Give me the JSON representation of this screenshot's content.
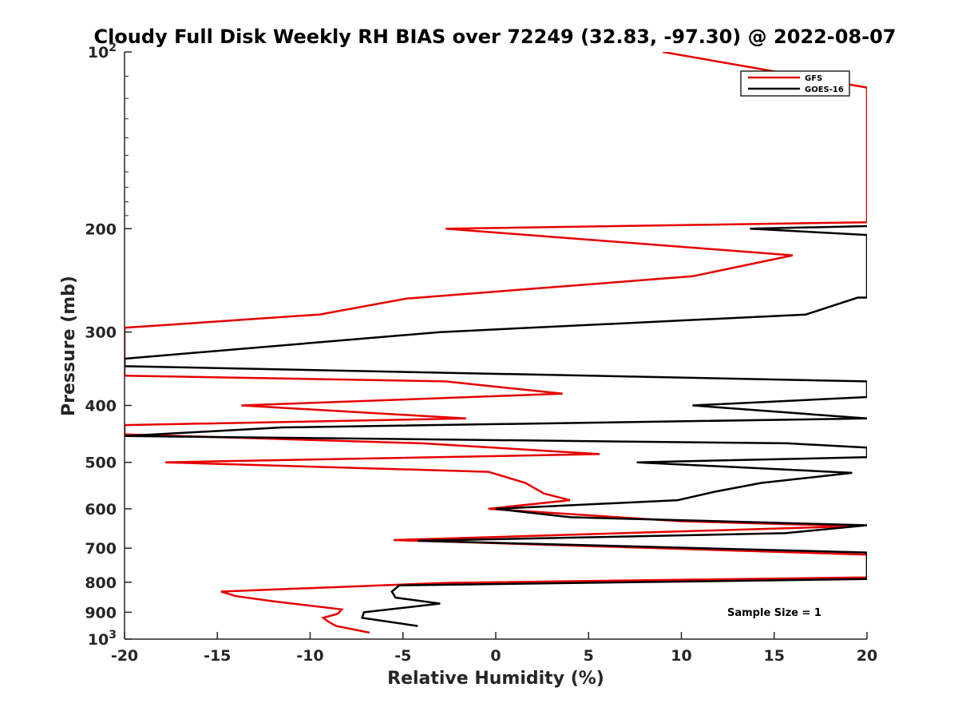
{
  "chart_data": {
    "type": "line",
    "title": "Cloudy Full Disk Weekly RH BIAS over 72249 (32.83, -97.30) @ 2022-08-07",
    "xlabel": "Relative Humidity (%)",
    "ylabel": "Pressure (mb)",
    "xlim": [
      -20,
      20
    ],
    "ylim": [
      1000,
      100
    ],
    "yscale": "log",
    "x_ticks": [
      "-20",
      "-15",
      "-10",
      "-5",
      "0",
      "5",
      "10",
      "15",
      "20"
    ],
    "y_ticks": [
      {
        "value": 100,
        "base": "10",
        "exp": "2"
      },
      {
        "value": 200,
        "label": "200"
      },
      {
        "value": 300,
        "label": "300"
      },
      {
        "value": 400,
        "label": "400"
      },
      {
        "value": 500,
        "label": "500"
      },
      {
        "value": 600,
        "label": "600"
      },
      {
        "value": 700,
        "label": "700"
      },
      {
        "value": 800,
        "label": "800"
      },
      {
        "value": 900,
        "label": "900"
      },
      {
        "value": 1000,
        "base": "10",
        "exp": "3"
      }
    ],
    "legend": {
      "position": "top-right",
      "entries": [
        "GFS",
        "GOES-16"
      ]
    },
    "annotation": "Sample Size = 1",
    "series": [
      {
        "name": "GFS",
        "color": "#e60000",
        "points": [
          [
            9,
            100
          ],
          [
            20,
            115
          ],
          [
            20,
            195
          ],
          [
            -2.7,
            200
          ],
          [
            16,
            222
          ],
          [
            10.6,
            241
          ],
          [
            -4.8,
            263
          ],
          [
            -9.5,
            280
          ],
          [
            -20,
            295
          ],
          [
            -20,
            356
          ],
          [
            -2.7,
            364
          ],
          [
            3.6,
            382
          ],
          [
            -13.7,
            400
          ],
          [
            -1.6,
            421
          ],
          [
            -20,
            432
          ],
          [
            -20,
            448
          ],
          [
            -4,
            464
          ],
          [
            5.6,
            484
          ],
          [
            -17.8,
            500
          ],
          [
            -0.4,
            519
          ],
          [
            1.6,
            542
          ],
          [
            2.6,
            565
          ],
          [
            4,
            580
          ],
          [
            -0.4,
            600
          ],
          [
            10,
            630
          ],
          [
            19.5,
            642
          ],
          [
            -5.5,
            678
          ],
          [
            20,
            718
          ],
          [
            20,
            785
          ],
          [
            -2.7,
            802
          ],
          [
            -14.8,
            830
          ],
          [
            -14,
            845
          ],
          [
            -12,
            862
          ],
          [
            -8.3,
            890
          ],
          [
            -8.5,
            905
          ],
          [
            -9.3,
            920
          ],
          [
            -9,
            935
          ],
          [
            -8.6,
            950
          ],
          [
            -6.8,
            975
          ]
        ]
      },
      {
        "name": "GOES-16",
        "color": "#000000",
        "points": [
          [
            20,
            198
          ],
          [
            13.7,
            200
          ],
          [
            20,
            205
          ],
          [
            20,
            262
          ],
          [
            19.5,
            262
          ],
          [
            16.7,
            280
          ],
          [
            -3,
            300
          ],
          [
            -20,
            333
          ],
          [
            -20,
            343
          ],
          [
            20,
            364
          ],
          [
            20,
            387
          ],
          [
            10.6,
            400
          ],
          [
            20,
            421
          ],
          [
            -11.5,
            436
          ],
          [
            -20,
            451
          ],
          [
            15.7,
            464
          ],
          [
            20,
            472
          ],
          [
            20,
            490
          ],
          [
            7.6,
            500
          ],
          [
            19.2,
            521
          ],
          [
            14.3,
            542
          ],
          [
            11.8,
            561
          ],
          [
            9.8,
            580
          ],
          [
            0,
            600
          ],
          [
            4,
            620
          ],
          [
            20,
            640
          ],
          [
            15.6,
            660
          ],
          [
            -4.2,
            680
          ],
          [
            20,
            712
          ],
          [
            20,
            790
          ],
          [
            -5.2,
            810
          ],
          [
            -5.6,
            830
          ],
          [
            -5.4,
            850
          ],
          [
            -3,
            870
          ],
          [
            -7.1,
            900
          ],
          [
            -7.2,
            920
          ],
          [
            -4.2,
            950
          ]
        ]
      }
    ]
  }
}
